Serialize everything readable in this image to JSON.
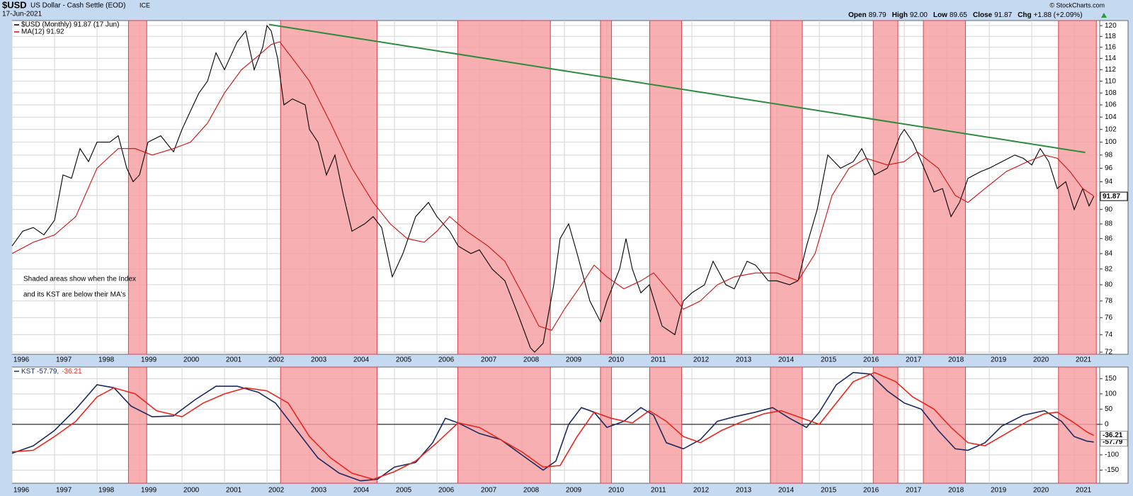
{
  "header": {
    "symbol": "$USD",
    "name": "US Dollar - Cash Settle (EOD)",
    "exchange": "ICE",
    "date": "17-Jun-2021",
    "quote": [
      {
        "label": "Open",
        "value": "89.79"
      },
      {
        "label": "High",
        "value": "92.00"
      },
      {
        "label": "Low",
        "value": "89.65"
      },
      {
        "label": "Close",
        "value": "91.87"
      },
      {
        "label": "Chg",
        "value": "+1.88 (+2.09%)"
      }
    ],
    "credit": "© StockCharts.com"
  },
  "chart_data": [
    {
      "type": "line",
      "log": true,
      "grid": true,
      "legend": "top-left",
      "annotation": [
        "Shaded areas show when the Index",
        "and its KST are below their MA's"
      ],
      "annotation_color": "#1414e6",
      "xlim": [
        1996,
        2021.6
      ],
      "xticks": [
        1996,
        1997,
        1998,
        1999,
        2000,
        2001,
        2002,
        2003,
        2004,
        2005,
        2006,
        2007,
        2008,
        2009,
        2010,
        2011,
        2012,
        2013,
        2014,
        2015,
        2016,
        2017,
        2018,
        2019,
        2020,
        2021
      ],
      "ylim": [
        71.76,
        120.95
      ],
      "yticks": [
        72,
        74,
        76,
        78,
        80,
        82,
        84,
        86,
        88,
        90,
        92,
        94,
        96,
        98,
        100,
        102,
        104,
        106,
        108,
        110,
        112,
        114,
        116,
        118,
        120
      ],
      "shade_color": "#f7a1a5",
      "shaded_periods": [
        [
          1998.74,
          1999.17
        ],
        [
          2002.32,
          2004.59
        ],
        [
          2006.49,
          2008.67
        ],
        [
          2009.85,
          2010.11
        ],
        [
          2011.01,
          2011.76
        ],
        [
          2013.85,
          2014.6
        ],
        [
          2016.27,
          2016.85
        ],
        [
          2017.45,
          2018.44
        ],
        [
          2020.63,
          2021.52
        ]
      ],
      "trendline": {
        "x": [
          2002.05,
          2021.26
        ],
        "y": [
          120.2,
          98.4
        ],
        "color": "#2e8b3e"
      },
      "series": [
        {
          "name": "$USD (Monthly) 91.87 (17 Jun)",
          "color": "#000000",
          "last_label": true,
          "x": [
            1996,
            1996.25,
            1996.5,
            1996.75,
            1997,
            1997.2,
            1997.4,
            1997.6,
            1997.8,
            1998,
            1998.3,
            1998.5,
            1998.7,
            1998.85,
            1999,
            1999.2,
            1999.5,
            1999.8,
            2000,
            2000.2,
            2000.4,
            2000.6,
            2000.8,
            2001,
            2001.3,
            2001.5,
            2001.7,
            2001.9,
            2002,
            2002.1,
            2002.25,
            2002.4,
            2002.6,
            2002.9,
            2003,
            2003.2,
            2003.4,
            2003.6,
            2003.8,
            2004,
            2004.3,
            2004.5,
            2004.7,
            2004.95,
            2005.2,
            2005.5,
            2005.8,
            2006,
            2006.3,
            2006.5,
            2006.8,
            2007,
            2007.3,
            2007.6,
            2007.9,
            2008.2,
            2008.3,
            2008.5,
            2008.75,
            2008.9,
            2009.1,
            2009.3,
            2009.6,
            2009.85,
            2010,
            2010.3,
            2010.45,
            2010.6,
            2010.8,
            2011,
            2011.3,
            2011.6,
            2011.8,
            2012,
            2012.3,
            2012.5,
            2012.8,
            2013,
            2013.3,
            2013.5,
            2013.8,
            2014,
            2014.3,
            2014.5,
            2014.7,
            2014.95,
            2015.2,
            2015.5,
            2015.8,
            2016,
            2016.3,
            2016.6,
            2016.9,
            2017,
            2017.2,
            2017.4,
            2017.7,
            2017.9,
            2018.1,
            2018.3,
            2018.5,
            2018.8,
            2019,
            2019.3,
            2019.6,
            2019.8,
            2020,
            2020.2,
            2020.4,
            2020.6,
            2020.8,
            2021,
            2021.2,
            2021.35,
            2021.46
          ],
          "values": [
            85,
            87,
            87.5,
            86.5,
            88.5,
            95,
            94.5,
            99,
            97,
            100,
            100,
            101,
            96,
            94,
            95,
            100,
            101,
            98.5,
            102,
            105,
            108,
            110,
            115,
            112,
            117,
            119,
            112,
            116,
            120,
            119,
            114,
            106,
            107,
            106,
            102,
            100,
            95,
            98,
            92,
            87,
            88,
            89,
            87.5,
            81,
            84,
            89,
            91,
            89,
            87,
            85,
            84,
            84.5,
            82,
            80.5,
            76.5,
            72.5,
            72,
            73,
            80,
            86,
            88,
            84,
            78,
            75.5,
            78,
            82,
            86,
            82,
            79,
            80,
            75,
            74,
            78,
            79,
            80,
            83,
            80,
            79.5,
            83,
            82.5,
            80.5,
            80.5,
            80,
            80.5,
            85,
            90,
            98,
            96,
            97,
            99,
            95,
            96,
            101,
            102,
            100,
            97,
            92.5,
            93,
            89,
            91,
            94.5,
            95.5,
            96,
            97,
            98,
            97.5,
            96.5,
            99,
            97,
            93,
            94,
            90,
            93,
            90.5,
            91.87
          ]
        },
        {
          "name": "MA(12) 91.92",
          "color": "#cc1111",
          "x": [
            1996,
            1996.5,
            1997,
            1997.5,
            1998,
            1998.5,
            1998.9,
            1999.3,
            1999.8,
            2000.2,
            2000.6,
            2001,
            2001.4,
            2001.8,
            2002.1,
            2002.3,
            2002.7,
            2003,
            2003.5,
            2004,
            2004.5,
            2004.9,
            2005.3,
            2005.7,
            2006,
            2006.3,
            2006.7,
            2007.2,
            2007.6,
            2008,
            2008.4,
            2008.7,
            2009,
            2009.4,
            2009.7,
            2010,
            2010.4,
            2010.8,
            2011.1,
            2011.5,
            2011.8,
            2012.2,
            2012.6,
            2013,
            2013.5,
            2014,
            2014.5,
            2014.9,
            2015.3,
            2015.7,
            2016.1,
            2016.6,
            2017,
            2017.3,
            2017.8,
            2018.2,
            2018.5,
            2018.9,
            2019.4,
            2019.9,
            2020.3,
            2020.6,
            2020.9,
            2021.2,
            2021.46
          ],
          "values": [
            84,
            85.5,
            86.5,
            89,
            96,
            99,
            99,
            98,
            99,
            100,
            103,
            108,
            112,
            114.5,
            116.5,
            117,
            113,
            110,
            103,
            96,
            91,
            88,
            86,
            85.5,
            87,
            89,
            87,
            85,
            83,
            79,
            75,
            74.5,
            77,
            80,
            82.5,
            81,
            79.5,
            80.5,
            81.5,
            79,
            77,
            78,
            80,
            81,
            81.5,
            81.5,
            80.5,
            84,
            92,
            96,
            97.5,
            96.5,
            97,
            98.5,
            96,
            92,
            91,
            93,
            95.5,
            97,
            98,
            97.5,
            95.5,
            93,
            91.92
          ]
        }
      ]
    },
    {
      "type": "line",
      "log": false,
      "grid": true,
      "legend": "top-left",
      "zero_line": true,
      "xlim": [
        1996,
        2021.6
      ],
      "xticks": [
        1996,
        1997,
        1998,
        1999,
        2000,
        2001,
        2002,
        2003,
        2004,
        2005,
        2006,
        2007,
        2008,
        2009,
        2010,
        2011,
        2012,
        2013,
        2014,
        2015,
        2016,
        2017,
        2018,
        2019,
        2020,
        2021
      ],
      "ylim": [
        -193,
        188
      ],
      "yticks": [
        -150,
        -100,
        0,
        50,
        100,
        150
      ],
      "series": [
        {
          "name": "KST -57.79,",
          "color": "#1a2a5e",
          "last_label": true,
          "x": [
            1996,
            1996.5,
            1997,
            1997.5,
            1998,
            1998.4,
            1998.8,
            1999.3,
            1999.8,
            2000.3,
            2000.8,
            2001.3,
            2001.8,
            2002.2,
            2002.7,
            2003.2,
            2003.7,
            2004.2,
            2004.6,
            2005,
            2005.5,
            2005.9,
            2006.2,
            2006.5,
            2007,
            2007.5,
            2008,
            2008.5,
            2008.8,
            2009.1,
            2009.4,
            2009.7,
            2010,
            2010.4,
            2010.8,
            2011.1,
            2011.4,
            2011.8,
            2012.2,
            2012.6,
            2013,
            2013.5,
            2013.9,
            2014.3,
            2014.7,
            2015,
            2015.4,
            2015.8,
            2016.2,
            2016.6,
            2017,
            2017.4,
            2017.8,
            2018.2,
            2018.5,
            2018.9,
            2019.3,
            2019.8,
            2020.3,
            2020.7,
            2021,
            2021.3,
            2021.46
          ],
          "values": [
            -95,
            -70,
            -20,
            50,
            130,
            120,
            60,
            25,
            28,
            80,
            125,
            125,
            105,
            70,
            -20,
            -110,
            -160,
            -185,
            -180,
            -140,
            -125,
            -60,
            20,
            5,
            -30,
            -50,
            -100,
            -150,
            -120,
            0,
            55,
            40,
            -10,
            10,
            55,
            30,
            -60,
            -80,
            -50,
            10,
            25,
            40,
            55,
            20,
            -10,
            40,
            130,
            170,
            165,
            110,
            70,
            50,
            -20,
            -80,
            -85,
            -60,
            -5,
            30,
            45,
            10,
            -40,
            -55,
            -57.79
          ]
        },
        {
          "name": "-36.21",
          "color": "#e8261e",
          "last_label": true,
          "x": [
            1996,
            1996.5,
            1997,
            1997.5,
            1998,
            1998.4,
            1998.9,
            1999.4,
            2000,
            2000.5,
            2001,
            2001.5,
            2002,
            2002.5,
            2003,
            2003.5,
            2004,
            2004.5,
            2005,
            2005.5,
            2006,
            2006.5,
            2007,
            2007.5,
            2008,
            2008.5,
            2008.9,
            2009.3,
            2009.7,
            2010.1,
            2010.6,
            2011,
            2011.4,
            2011.8,
            2012.2,
            2012.7,
            2013.2,
            2013.7,
            2014.1,
            2014.6,
            2015,
            2015.4,
            2015.8,
            2016.3,
            2016.8,
            2017.2,
            2017.7,
            2018.1,
            2018.5,
            2018.9,
            2019.4,
            2019.9,
            2020.3,
            2020.6,
            2021,
            2021.3,
            2021.46
          ],
          "values": [
            -90,
            -85,
            -40,
            10,
            90,
            120,
            100,
            45,
            25,
            70,
            100,
            120,
            110,
            70,
            -40,
            -110,
            -160,
            -180,
            -155,
            -120,
            -60,
            5,
            -10,
            -50,
            -90,
            -140,
            -135,
            -40,
            40,
            20,
            5,
            45,
            10,
            -40,
            -60,
            -20,
            10,
            35,
            45,
            20,
            0,
            70,
            140,
            170,
            140,
            90,
            50,
            -10,
            -60,
            -70,
            -30,
            10,
            35,
            40,
            5,
            -25,
            -36.21
          ]
        }
      ]
    }
  ]
}
